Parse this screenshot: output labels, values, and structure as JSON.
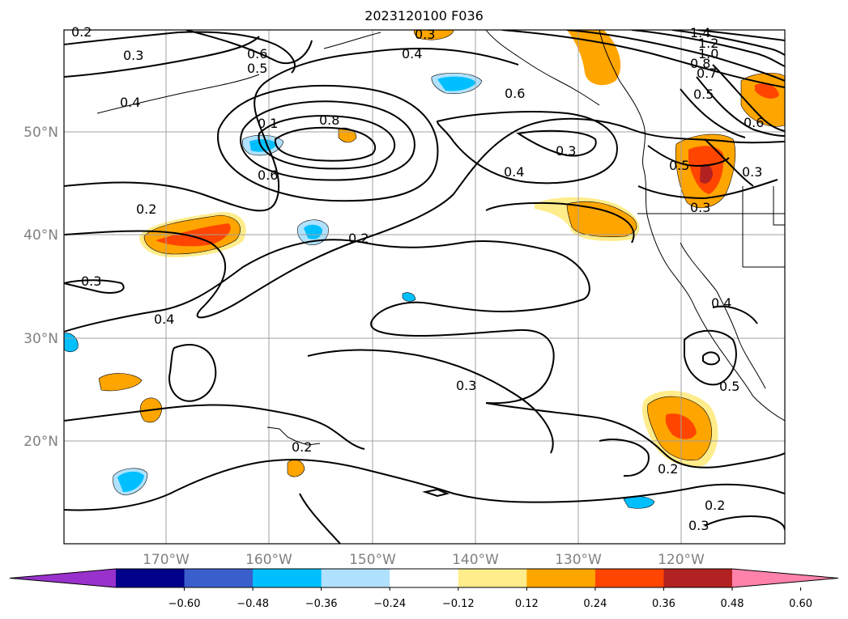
{
  "title": "2023120100 F036",
  "map": {
    "lon_labels": [
      "170°W",
      "160°W",
      "150°W",
      "140°W",
      "130°W",
      "120°W"
    ],
    "lat_labels": [
      "50°N",
      "40°N",
      "30°N",
      "20°N"
    ],
    "contour_labels": [
      "0.2",
      "0.3",
      "0.6",
      "0.5",
      "0.4",
      "0.3",
      "1.4",
      "1.2",
      "1.0",
      "0.8",
      "0.7",
      "0.5",
      "0.6",
      "0.6",
      "0.4",
      "0.1",
      "0.8",
      "0.6",
      "0.3",
      "0.4",
      "0.5",
      "0.3",
      "0.2",
      "0.3",
      "0.3",
      "0.4",
      "0.3",
      "0.2",
      "0.2",
      "0.4",
      "0.5",
      "0.2",
      "0.2",
      "0.3"
    ]
  },
  "colorbar": {
    "ticks": [
      "−0.60",
      "−0.48",
      "−0.36",
      "−0.24",
      "−0.12",
      "0.12",
      "0.24",
      "0.36",
      "0.48",
      "0.60"
    ],
    "colors": [
      "#9932cc",
      "#00008b",
      "#3a5fcd",
      "#00bfff",
      "#b0e2ff",
      "#ffffff",
      "#ffec8b",
      "#ffa500",
      "#ff4500",
      "#b22222",
      "#ff82ab"
    ]
  }
}
